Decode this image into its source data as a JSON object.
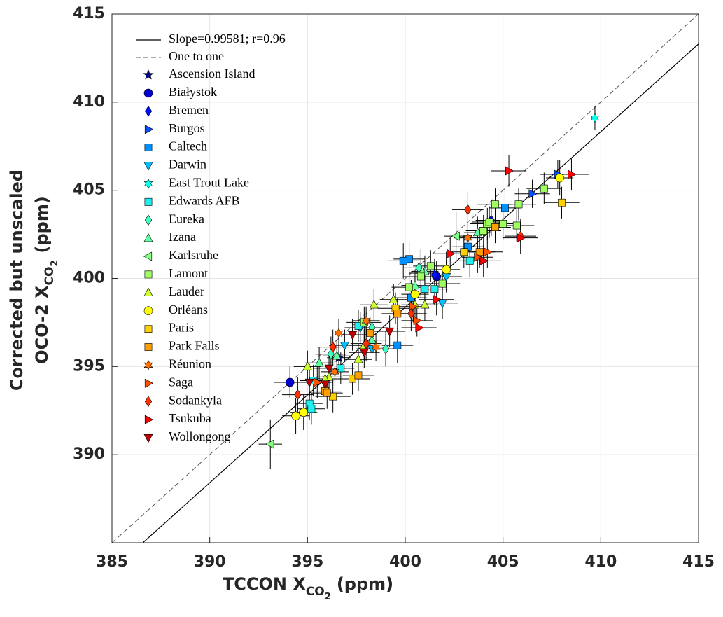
{
  "chart_data": {
    "type": "scatter",
    "xlabel": {
      "text": "TCCON X",
      "sub": "CO",
      "subsub": "2",
      "unit": "(ppm)"
    },
    "ylabel": {
      "line1": "Corrected but unscaled",
      "text": "OCO-2 X",
      "sub": "CO",
      "subsub": "2",
      "unit": "(ppm)"
    },
    "xlim": [
      385,
      415
    ],
    "xticks": [
      385,
      390,
      395,
      400,
      405,
      410,
      415
    ],
    "ylim": [
      385,
      415
    ],
    "yticks": [
      390,
      395,
      400,
      405,
      410,
      415
    ],
    "grid": true,
    "legend": "upper left",
    "fit": {
      "label": "Slope=0.99581; r=0.96",
      "slope": 0.99581,
      "intercept": 0.04,
      "color": "#000000"
    },
    "one_to_one": {
      "label": "One to one",
      "color": "#555555"
    },
    "series": [
      {
        "name": "Ascension Island",
        "color": "#00008f",
        "marker": "pentagram",
        "x": [
          396.6
        ],
        "values": [
          395.5
        ],
        "xerr": 0.6,
        "yerr": 0.8
      },
      {
        "name": "Białystok",
        "color": "#0000cf",
        "marker": "circle",
        "x": [
          394.1,
          401.6
        ],
        "values": [
          394.1,
          400.1
        ],
        "xerr": 0.8,
        "yerr": 0.9
      },
      {
        "name": "Bremen",
        "color": "#0010ff",
        "marker": "diamond",
        "x": [
          404.4,
          401.5
        ],
        "values": [
          403.3,
          400.2
        ],
        "xerr": 0.8,
        "yerr": 0.9
      },
      {
        "name": "Burgos",
        "color": "#0050ff",
        "marker": "triangle-right",
        "x": [
          406.5,
          407.8
        ],
        "values": [
          404.8,
          405.9
        ],
        "xerr": 0.9,
        "yerr": 0.8
      },
      {
        "name": "Caltech",
        "color": "#0090ff",
        "marker": "square",
        "x": [
          400.2,
          399.9,
          405.1,
          403.2,
          399.6,
          400.3
        ],
        "values": [
          401.1,
          401.0,
          404.0,
          401.8,
          396.2,
          398.9
        ],
        "xerr": 0.8,
        "yerr": 1.0
      },
      {
        "name": "Darwin",
        "color": "#00c0ff",
        "marker": "triangle-down",
        "x": [
          396.9,
          401.9,
          402.1,
          398.3,
          397.7
        ],
        "values": [
          396.2,
          398.6,
          400.1,
          396.0,
          397.2
        ],
        "xerr": 0.8,
        "yerr": 0.9
      },
      {
        "name": "East Trout Lake",
        "color": "#10ffef",
        "marker": "hexagram",
        "x": [
          409.7
        ],
        "values": [
          409.1
        ],
        "xerr": 0.7,
        "yerr": 0.7
      },
      {
        "name": "Edwards AFB",
        "color": "#20eff0",
        "marker": "square",
        "x": [
          395.1,
          395.2,
          396.7,
          401.5,
          397.6,
          401.0,
          403.3,
          395.3
        ],
        "values": [
          392.9,
          392.6,
          394.9,
          399.4,
          397.3,
          399.4,
          401.0,
          394.2
        ],
        "xerr": 0.7,
        "yerr": 0.9
      },
      {
        "name": "Eureka",
        "color": "#40ffbf",
        "marker": "diamond",
        "x": [
          400.7,
          399.0,
          396.2,
          398.3
        ],
        "values": [
          400.6,
          396.0,
          395.7,
          397.2
        ],
        "xerr": 0.8,
        "yerr": 1.0
      },
      {
        "name": "Izana",
        "color": "#60ff9f",
        "marker": "triangle-up",
        "x": [
          395.6,
          396.5,
          400.5,
          401.0,
          403.7,
          398.3
        ],
        "values": [
          395.2,
          395.6,
          399.6,
          400.4,
          402.6,
          396.5
        ],
        "xerr": 0.7,
        "yerr": 0.9
      },
      {
        "name": "Karlsruhe",
        "color": "#80ff80",
        "marker": "triangle-left",
        "x": [
          393.1,
          402.6,
          400.8
        ],
        "values": [
          390.6,
          402.4,
          400.3
        ],
        "xerr": 0.6,
        "yerr": 1.4
      },
      {
        "name": "Lamont",
        "color": "#a0ff60",
        "marker": "square",
        "x": [
          407.1,
          405.8,
          404.6,
          404.2,
          405.0,
          405.7,
          404.0,
          401.3,
          401.9,
          400.2,
          400.8,
          397.9,
          404.3
        ],
        "values": [
          405.1,
          404.2,
          404.2,
          403.1,
          403.1,
          403.0,
          402.7,
          400.7,
          399.7,
          399.5,
          400.1,
          397.5,
          403.2
        ],
        "xerr": 0.9,
        "yerr": 0.9
      },
      {
        "name": "Lauder",
        "color": "#d0ff30",
        "marker": "triangle-up",
        "x": [
          395.0,
          396.1,
          397.6,
          398.4,
          400.5,
          401.0,
          399.4,
          397.9,
          395.9
        ],
        "values": [
          395.0,
          394.4,
          395.4,
          398.5,
          398.5,
          398.5,
          398.8,
          396.2,
          394.3
        ],
        "xerr": 0.7,
        "yerr": 0.9
      },
      {
        "name": "Orléans",
        "color": "#ffff00",
        "marker": "circle",
        "x": [
          394.4,
          394.8,
          407.9,
          402.1,
          400.5
        ],
        "values": [
          392.2,
          392.4,
          405.7,
          400.5,
          399.1
        ],
        "xerr": 0.7,
        "yerr": 1.0
      },
      {
        "name": "Paris",
        "color": "#ffd000",
        "marker": "square",
        "x": [
          396.3,
          397.3,
          408.0,
          403.0,
          399.5
        ],
        "values": [
          393.3,
          394.3,
          404.3,
          401.5,
          398.3
        ],
        "xerr": 0.9,
        "yerr": 0.9
      },
      {
        "name": "Park Falls",
        "color": "#ff9f00",
        "marker": "square",
        "x": [
          395.9,
          396.0,
          404.6,
          403.8,
          398.2,
          399.6,
          397.6
        ],
        "values": [
          393.6,
          393.5,
          402.9,
          401.5,
          396.9,
          398.0,
          394.5
        ],
        "xerr": 0.8,
        "yerr": 0.9
      },
      {
        "name": "Réunion",
        "color": "#ff7000",
        "marker": "hexagram",
        "x": [
          396.6,
          398.0,
          403.2,
          396.4,
          398.5
        ],
        "values": [
          396.9,
          397.6,
          402.3,
          394.7,
          396.1
        ],
        "xerr": 0.7,
        "yerr": 0.8
      },
      {
        "name": "Saga",
        "color": "#ff5000",
        "marker": "triangle-right",
        "x": [
          395.5,
          400.4,
          403.7,
          404.2,
          400.6
        ],
        "values": [
          394.1,
          398.4,
          401.2,
          401.5,
          397.6
        ],
        "xerr": 0.8,
        "yerr": 0.9
      },
      {
        "name": "Sodankyla",
        "color": "#ff3000",
        "marker": "diamond",
        "x": [
          394.5,
          396.3,
          403.2,
          405.9,
          398.0,
          400.3
        ],
        "values": [
          393.4,
          396.1,
          403.9,
          402.4,
          396.3,
          398.0
        ],
        "xerr": 0.8,
        "yerr": 1.0
      },
      {
        "name": "Tsukuba",
        "color": "#ff0000",
        "marker": "triangle-right",
        "x": [
          405.3,
          408.5,
          402.3,
          400.7,
          404.0,
          405.9,
          401.6
        ],
        "values": [
          406.1,
          405.9,
          401.4,
          397.2,
          401.0,
          402.3,
          398.8
        ],
        "xerr": 0.9,
        "yerr": 0.9
      },
      {
        "name": "Wollongong",
        "color": "#c00000",
        "marker": "triangle-down",
        "x": [
          395.1,
          395.9,
          397.3,
          396.1,
          399.2,
          397.9
        ],
        "values": [
          394.1,
          394.0,
          396.8,
          394.9,
          397.0,
          395.8
        ],
        "xerr": 0.8,
        "yerr": 0.9
      }
    ]
  }
}
